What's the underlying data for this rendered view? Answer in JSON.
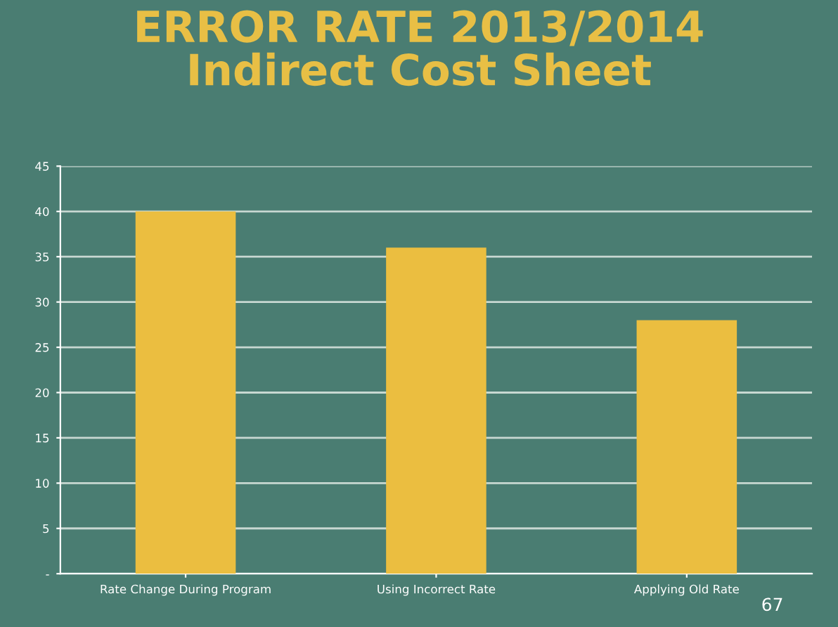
{
  "chart_data": {
    "type": "bar",
    "title": "ERROR RATE 2013/2014\nIndirect Cost Sheet",
    "categories": [
      "Rate Change During Program",
      "Using Incorrect Rate",
      "Applying Old Rate"
    ],
    "values": [
      40,
      36,
      28
    ],
    "color": "#ebbe40",
    "ylim": [
      0,
      45
    ],
    "yticks": [
      {
        "value": 0,
        "label": "-"
      },
      5,
      10,
      15,
      20,
      25,
      30,
      35,
      40,
      45
    ],
    "grid": "y",
    "legend": false,
    "annotations": [
      "67"
    ]
  }
}
